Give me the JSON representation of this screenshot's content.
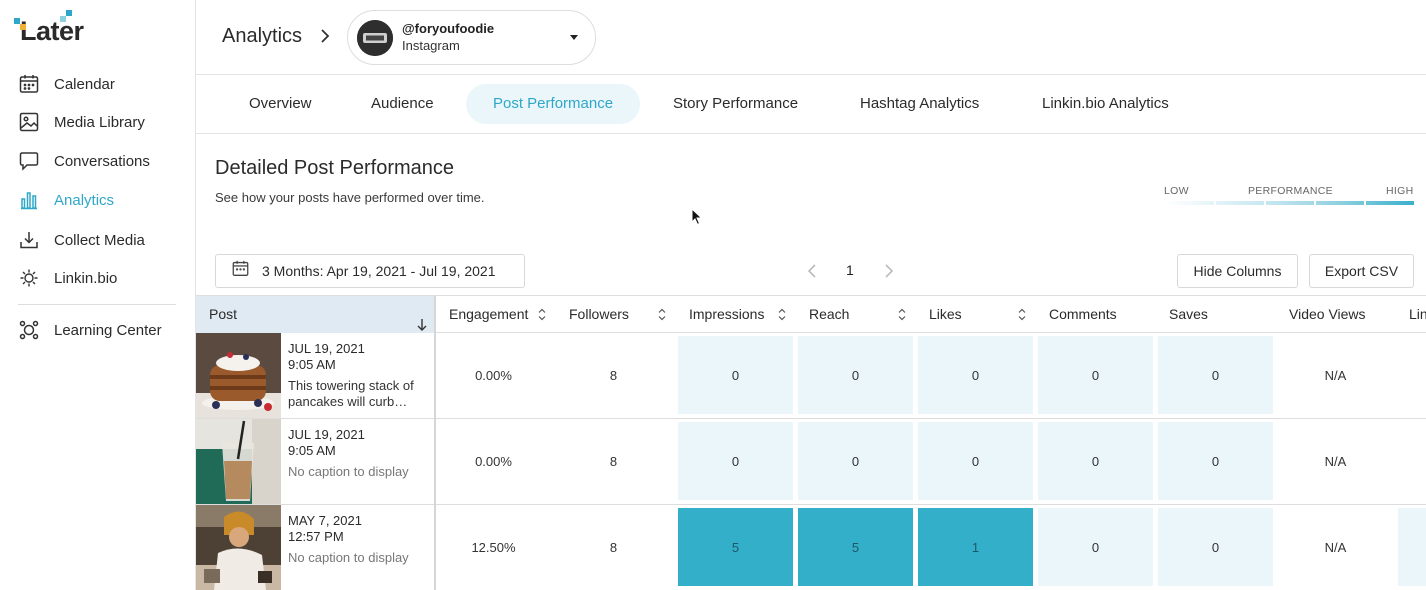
{
  "app": {
    "logo": "Later"
  },
  "sidebar": {
    "items": [
      {
        "label": "Calendar",
        "icon": "calendar-icon"
      },
      {
        "label": "Media Library",
        "icon": "media-library-icon"
      },
      {
        "label": "Conversations",
        "icon": "conversations-icon"
      },
      {
        "label": "Analytics",
        "icon": "analytics-icon",
        "active": true
      },
      {
        "label": "Collect Media",
        "icon": "collect-media-icon"
      },
      {
        "label": "Linkin.bio",
        "icon": "linkinbio-icon"
      },
      {
        "label": "Learning Center",
        "icon": "learning-center-icon"
      }
    ]
  },
  "header": {
    "breadcrumb": "Analytics",
    "account": {
      "handle": "@foryoufoodie",
      "platform": "Instagram"
    }
  },
  "tabs": [
    "Overview",
    "Audience",
    "Post Performance",
    "Story Performance",
    "Hashtag Analytics",
    "Linkin.bio Analytics"
  ],
  "active_tab": "Post Performance",
  "section": {
    "title": "Detailed Post Performance",
    "subtitle": "See how your posts have performed over time.",
    "legend": {
      "low": "LOW",
      "mid": "PERFORMANCE",
      "high": "HIGH"
    }
  },
  "controls": {
    "date_range": "3 Months: Apr 19, 2021 - Jul 19, 2021",
    "page": "1",
    "hide_columns": "Hide Columns",
    "export_csv": "Export CSV"
  },
  "table": {
    "columns": [
      "Post",
      "Engagement",
      "Followers",
      "Impressions",
      "Reach",
      "Likes",
      "Comments",
      "Saves",
      "Video Views",
      "Lin"
    ],
    "rows": [
      {
        "date": "JUL 19, 2021",
        "time": "9:05 AM",
        "caption": "This towering stack of pancakes will curb…",
        "engagement": "0.00%",
        "followers": "8",
        "impressions": "0",
        "reach": "0",
        "likes": "0",
        "comments": "0",
        "saves": "0",
        "video_views": "N/A"
      },
      {
        "date": "JUL 19, 2021",
        "time": "9:05 AM",
        "caption": "No caption to display",
        "engagement": "0.00%",
        "followers": "8",
        "impressions": "0",
        "reach": "0",
        "likes": "0",
        "comments": "0",
        "saves": "0",
        "video_views": "N/A"
      },
      {
        "date": "MAY 7, 2021",
        "time": "12:57 PM",
        "caption": "No caption to display",
        "engagement": "12.50%",
        "followers": "8",
        "impressions": "5",
        "reach": "5",
        "likes": "1",
        "comments": "0",
        "saves": "0",
        "video_views": "N/A"
      }
    ]
  },
  "colors": {
    "accent": "#2fa8c8",
    "cell_low": "#eaf6fa",
    "cell_high": "#34afc9"
  }
}
